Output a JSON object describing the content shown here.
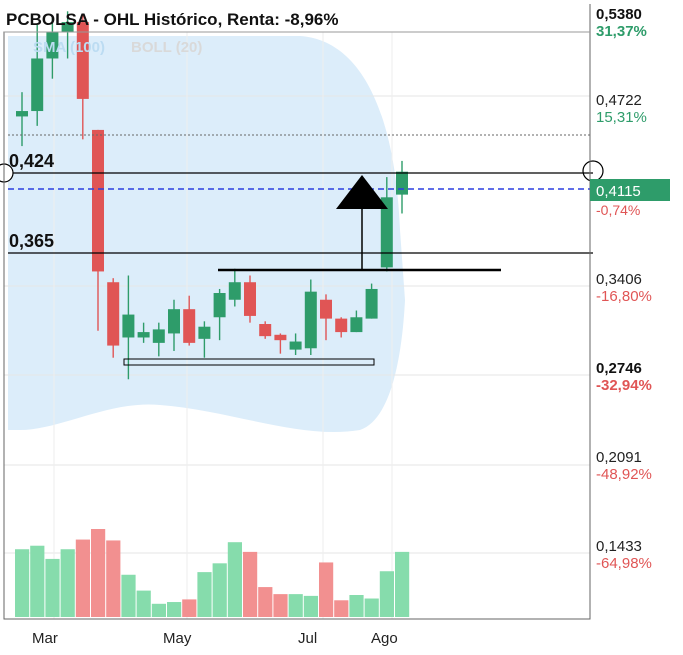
{
  "chart_data": {
    "type": "candlestick",
    "title": "PCBOLSA - OHL Histórico, Renta: -8,96%",
    "legend": [
      "SMA (100)",
      "BOLL (20)"
    ],
    "x_tick_labels": [
      "Mar",
      "May",
      "Jul",
      "Ago"
    ],
    "y_ticks": [
      {
        "price": "0,5380",
        "pct": "31,37%",
        "pct_color": "#2e9c6a",
        "bold": true
      },
      {
        "price": "0,4722",
        "pct": "15,31%",
        "pct_color": "#2e9c6a",
        "bold": false
      },
      {
        "price": "0,3406",
        "pct": "-16,80%",
        "pct_color": "#e05555",
        "bold": false
      },
      {
        "price": "0,2746",
        "pct": "-32,94%",
        "pct_color": "#e05555",
        "bold": true
      },
      {
        "price": "0,2091",
        "pct": "-48,92%",
        "pct_color": "#e05555",
        "bold": false
      },
      {
        "price": "0,1433",
        "pct": "-64,98%",
        "pct_color": "#e05555",
        "bold": false
      }
    ],
    "current_price": "0,4115",
    "current_pct": "-0,74%",
    "levels": [
      "0,424",
      "0,365"
    ],
    "candles": [
      {
        "o": 0.462,
        "h": 0.48,
        "l": 0.44,
        "c": 0.466
      },
      {
        "o": 0.466,
        "h": 0.53,
        "l": 0.455,
        "c": 0.505
      },
      {
        "o": 0.505,
        "h": 0.535,
        "l": 0.49,
        "c": 0.525
      },
      {
        "o": 0.525,
        "h": 0.54,
        "l": 0.505,
        "c": 0.532
      },
      {
        "o": 0.532,
        "h": 0.538,
        "l": 0.445,
        "c": 0.475
      },
      {
        "o": 0.452,
        "h": 0.452,
        "l": 0.303,
        "c": 0.347
      },
      {
        "o": 0.339,
        "h": 0.342,
        "l": 0.283,
        "c": 0.292
      },
      {
        "o": 0.298,
        "h": 0.344,
        "l": 0.267,
        "c": 0.315
      },
      {
        "o": 0.298,
        "h": 0.309,
        "l": 0.294,
        "c": 0.302
      },
      {
        "o": 0.294,
        "h": 0.309,
        "l": 0.284,
        "c": 0.304
      },
      {
        "o": 0.301,
        "h": 0.326,
        "l": 0.288,
        "c": 0.319
      },
      {
        "o": 0.319,
        "h": 0.329,
        "l": 0.292,
        "c": 0.294
      },
      {
        "o": 0.297,
        "h": 0.31,
        "l": 0.283,
        "c": 0.306
      },
      {
        "o": 0.313,
        "h": 0.334,
        "l": 0.296,
        "c": 0.331
      },
      {
        "o": 0.326,
        "h": 0.349,
        "l": 0.321,
        "c": 0.339
      },
      {
        "o": 0.339,
        "h": 0.344,
        "l": 0.309,
        "c": 0.314
      },
      {
        "o": 0.308,
        "h": 0.31,
        "l": 0.297,
        "c": 0.299
      },
      {
        "o": 0.3,
        "h": 0.301,
        "l": 0.286,
        "c": 0.296
      },
      {
        "o": 0.289,
        "h": 0.301,
        "l": 0.285,
        "c": 0.295
      },
      {
        "o": 0.29,
        "h": 0.341,
        "l": 0.285,
        "c": 0.332
      },
      {
        "o": 0.326,
        "h": 0.33,
        "l": 0.296,
        "c": 0.312
      },
      {
        "o": 0.312,
        "h": 0.313,
        "l": 0.298,
        "c": 0.302
      },
      {
        "o": 0.302,
        "h": 0.318,
        "l": 0.302,
        "c": 0.313
      },
      {
        "o": 0.312,
        "h": 0.338,
        "l": 0.312,
        "c": 0.334
      },
      {
        "o": 0.35,
        "h": 0.417,
        "l": 0.347,
        "c": 0.402
      },
      {
        "o": 0.404,
        "h": 0.429,
        "l": 0.39,
        "c": 0.421
      }
    ],
    "volumes": [
      0.77,
      0.81,
      0.66,
      0.77,
      0.88,
      1.0,
      0.87,
      0.48,
      0.3,
      0.15,
      0.17,
      0.2,
      0.51,
      0.61,
      0.85,
      0.74,
      0.34,
      0.26,
      0.26,
      0.24,
      0.62,
      0.19,
      0.25,
      0.21,
      0.52,
      0.74
    ],
    "colors": {
      "up": "#2e9c6a",
      "down": "#e05555",
      "vol_up": "#86dcac",
      "vol_down": "#f29090",
      "boll_fill": "#dcedfa",
      "current_line": "#2b3ee0",
      "sma_label": "#bcdcf2",
      "boll_label": "#d9d9d9"
    }
  }
}
